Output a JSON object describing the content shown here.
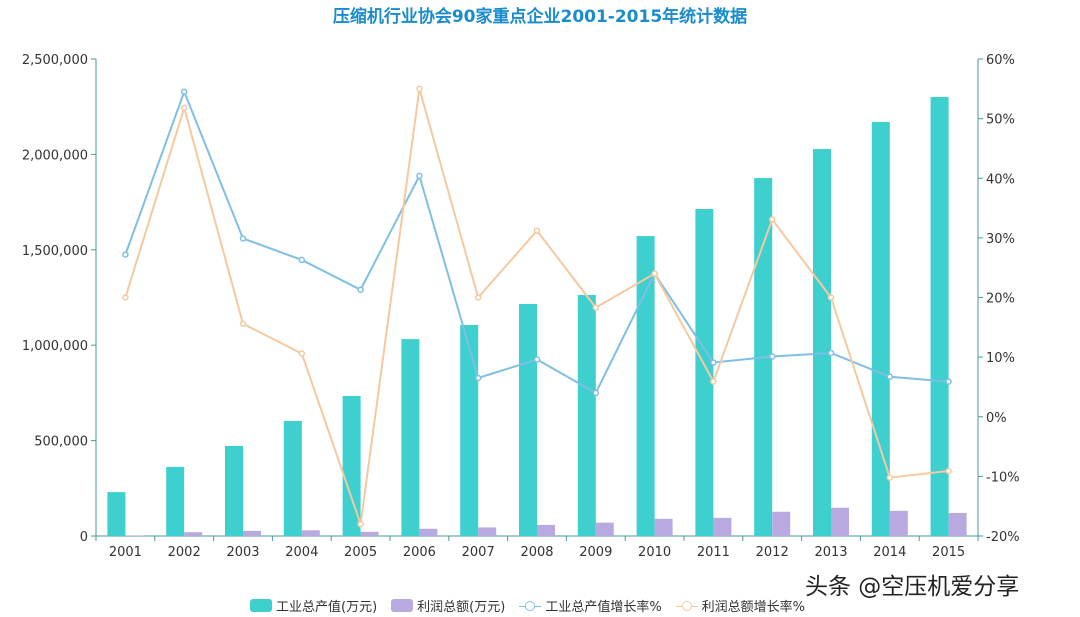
{
  "watermark": "头条 @空压机爱分享",
  "chart_data": {
    "type": "bar+line",
    "title": "压缩机行业协会90家重点企业2001-2015年统计数据",
    "categories": [
      "2001",
      "2002",
      "2003",
      "2004",
      "2005",
      "2006",
      "2007",
      "2008",
      "2009",
      "2010",
      "2011",
      "2012",
      "2013",
      "2014",
      "2015"
    ],
    "left_axis": {
      "ylim": [
        0,
        2500000
      ],
      "ticks": [
        "0",
        "500,000",
        "1,000,000",
        "1,500,000",
        "2,000,000",
        "2,500,000"
      ]
    },
    "right_axis": {
      "ylim": [
        -20,
        60
      ],
      "ticks": [
        "-20%",
        "-10%",
        "0%",
        "10%",
        "20%",
        "30%",
        "40%",
        "50%",
        "60%"
      ]
    },
    "grid": false,
    "legend_position": "bottom",
    "series": [
      {
        "name": "工业总产值(万元)",
        "type": "bar",
        "axis": "left",
        "color": "#3ecfcf",
        "values": [
          230000,
          362000,
          472000,
          603000,
          734000,
          1032000,
          1106000,
          1216000,
          1263000,
          1572000,
          1714000,
          1876000,
          2028000,
          2170000,
          2301000
        ]
      },
      {
        "name": "利润总额(万元)",
        "type": "bar",
        "axis": "left",
        "color": "#b8a9e0",
        "values": [
          3000,
          20000,
          27000,
          30000,
          22000,
          38000,
          45000,
          58000,
          70000,
          90000,
          95000,
          127000,
          148000,
          132000,
          121000
        ]
      },
      {
        "name": "工业总产值增长率%",
        "type": "line",
        "axis": "right",
        "color": "#7fbfe3",
        "values": [
          27.2,
          54.5,
          29.9,
          26.3,
          21.3,
          40.4,
          6.5,
          9.6,
          4.0,
          24.0,
          9.1,
          10.1,
          10.7,
          6.7,
          5.9
        ]
      },
      {
        "name": "利润总额增长率%",
        "type": "line",
        "axis": "right",
        "color": "#f5c9a0",
        "values": [
          20.0,
          51.8,
          15.6,
          10.6,
          -18.0,
          55.0,
          20.0,
          31.2,
          18.3,
          24.0,
          5.9,
          33.1,
          20.0,
          -10.2,
          -9.1
        ]
      }
    ]
  }
}
